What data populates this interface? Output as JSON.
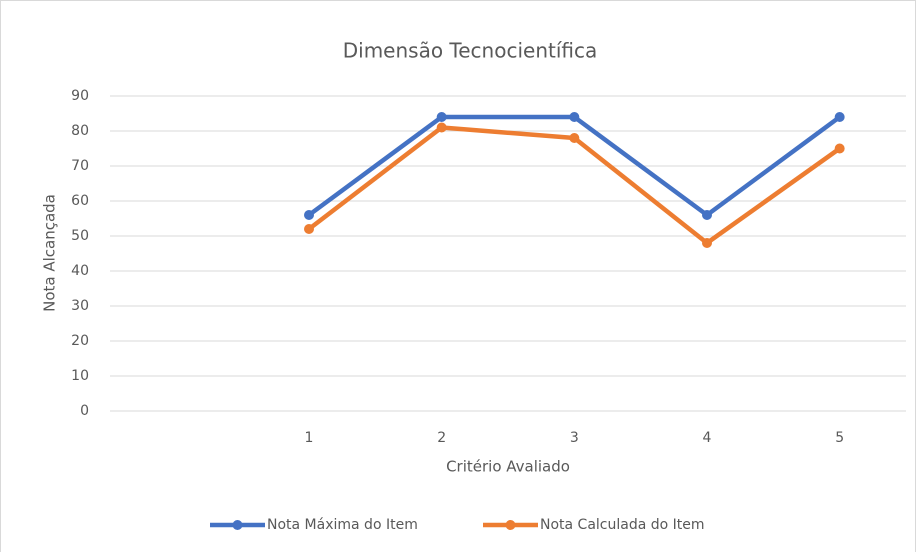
{
  "chart_data": {
    "type": "line",
    "title": "Dimensão Tecnocientífica",
    "x_label": "Critério Avaliado",
    "y_label": "Nota Alcançada",
    "categories": [
      null,
      1,
      2,
      3,
      4,
      5
    ],
    "series": [
      {
        "name": "Nota Máxima do Item",
        "color": "#4472c4",
        "values": [
          null,
          56,
          84,
          84,
          56,
          84
        ]
      },
      {
        "name": "Nota Calculada do Item",
        "color": "#ed7d31",
        "values": [
          null,
          52,
          81,
          78,
          48,
          75
        ]
      }
    ],
    "ylim": [
      0,
      90
    ],
    "yticks": [
      0,
      10,
      20,
      30,
      40,
      50,
      60,
      70,
      80,
      90
    ],
    "grid": true,
    "legend": "bottom"
  }
}
